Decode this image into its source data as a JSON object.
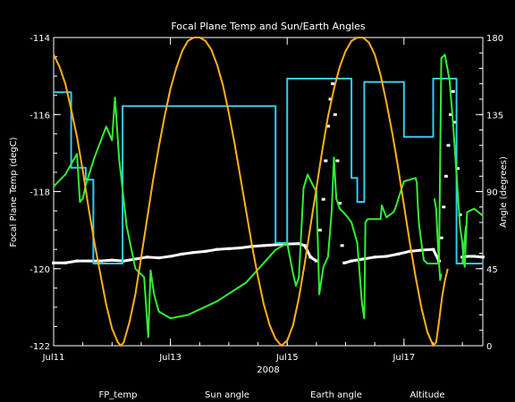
{
  "chart_data": {
    "type": "line",
    "title": "Focal Plane Temp and Sun/Earth Angles",
    "xlabel": "2008",
    "ylabel_left": "Focal Plane Temp (degC)",
    "ylabel_right": "Angle (degrees)",
    "x_ticks": [
      "Jul11",
      "Jul13",
      "Jul15",
      "Jul17"
    ],
    "x_tick_days": [
      0,
      2,
      4,
      6
    ],
    "xlim_days": [
      0,
      7.35
    ],
    "y_left": {
      "lim": [
        -122,
        -114
      ],
      "ticks": [
        "-122",
        "-120",
        "-118",
        "-116",
        "-114"
      ],
      "values": [
        -122,
        -120,
        -118,
        -116,
        -114
      ]
    },
    "y_right": {
      "lim": [
        0,
        180
      ],
      "ticks": [
        "0",
        "45",
        "90",
        "135",
        "180"
      ],
      "values": [
        0,
        45,
        90,
        135,
        180
      ]
    },
    "grid": false,
    "legend_position": "bottom",
    "colors": {
      "background": "#000000",
      "axes": "#ffffff",
      "fp_temp": "#ffffff",
      "sun": "#33ccee",
      "earth": "#33ee33",
      "altitude": "#ffb11a"
    },
    "series": [
      {
        "name": "FP_temp",
        "axis": "left",
        "style": "points",
        "points": [
          [
            0.0,
            -119.85
          ],
          [
            0.2,
            -119.85
          ],
          [
            0.4,
            -119.8
          ],
          [
            0.6,
            -119.8
          ],
          [
            0.8,
            -119.8
          ],
          [
            1.0,
            -119.78
          ],
          [
            1.2,
            -119.8
          ],
          [
            1.4,
            -119.75
          ],
          [
            1.6,
            -119.7
          ],
          [
            1.8,
            -119.72
          ],
          [
            2.0,
            -119.68
          ],
          [
            2.2,
            -119.62
          ],
          [
            2.4,
            -119.58
          ],
          [
            2.6,
            -119.55
          ],
          [
            2.8,
            -119.5
          ],
          [
            3.0,
            -119.48
          ],
          [
            3.2,
            -119.46
          ],
          [
            3.4,
            -119.42
          ],
          [
            3.6,
            -119.4
          ],
          [
            3.8,
            -119.38
          ],
          [
            4.0,
            -119.36
          ],
          [
            4.2,
            -119.35
          ],
          [
            4.3,
            -119.4
          ],
          [
            4.4,
            -119.7
          ],
          [
            4.5,
            -119.8
          ],
          [
            4.56,
            -119.0
          ],
          [
            4.62,
            -118.2
          ],
          [
            4.66,
            -117.2
          ],
          [
            4.7,
            -116.3
          ],
          [
            4.74,
            -115.6
          ],
          [
            4.78,
            -115.2
          ],
          [
            4.82,
            -116.0
          ],
          [
            4.86,
            -117.2
          ],
          [
            4.9,
            -118.3
          ],
          [
            4.94,
            -119.4
          ],
          [
            4.98,
            -119.85
          ],
          [
            5.1,
            -119.8
          ],
          [
            5.3,
            -119.75
          ],
          [
            5.5,
            -119.7
          ],
          [
            5.7,
            -119.68
          ],
          [
            5.9,
            -119.62
          ],
          [
            6.1,
            -119.55
          ],
          [
            6.3,
            -119.52
          ],
          [
            6.5,
            -119.5
          ],
          [
            6.6,
            -119.8
          ],
          [
            6.64,
            -119.2
          ],
          [
            6.68,
            -118.4
          ],
          [
            6.72,
            -117.6
          ],
          [
            6.76,
            -116.8
          ],
          [
            6.8,
            -116.0
          ],
          [
            6.84,
            -115.4
          ],
          [
            6.88,
            -116.2
          ],
          [
            6.92,
            -117.4
          ],
          [
            6.96,
            -118.6
          ],
          [
            7.0,
            -119.7
          ],
          [
            7.1,
            -119.68
          ],
          [
            7.2,
            -119.68
          ],
          [
            7.35,
            -119.7
          ]
        ]
      },
      {
        "name": "Sun angle",
        "axis": "right",
        "style": "step",
        "points": [
          [
            0.0,
            148
          ],
          [
            0.3,
            148
          ],
          [
            0.3,
            104
          ],
          [
            0.55,
            104
          ],
          [
            0.55,
            97
          ],
          [
            0.68,
            97
          ],
          [
            0.68,
            48
          ],
          [
            1.18,
            48
          ],
          [
            1.18,
            140
          ],
          [
            1.92,
            140
          ],
          [
            1.92,
            140
          ],
          [
            3.0,
            140
          ],
          [
            3.0,
            140
          ],
          [
            3.8,
            140
          ],
          [
            3.8,
            60
          ],
          [
            4.0,
            60
          ],
          [
            4.0,
            156
          ],
          [
            4.5,
            156
          ],
          [
            4.5,
            156
          ],
          [
            5.1,
            156
          ],
          [
            5.1,
            98
          ],
          [
            5.2,
            98
          ],
          [
            5.2,
            84
          ],
          [
            5.32,
            84
          ],
          [
            5.32,
            154
          ],
          [
            5.85,
            154
          ],
          [
            5.85,
            154
          ],
          [
            6.0,
            154
          ],
          [
            6.0,
            122
          ],
          [
            6.5,
            122
          ],
          [
            6.5,
            156
          ],
          [
            6.9,
            156
          ],
          [
            6.9,
            48
          ],
          [
            7.35,
            48
          ]
        ]
      },
      {
        "name": "Earth angle",
        "axis": "right",
        "style": "line",
        "points": [
          [
            0.0,
            93
          ],
          [
            0.2,
            100
          ],
          [
            0.4,
            112
          ],
          [
            0.45,
            84
          ],
          [
            0.5,
            86
          ],
          [
            0.55,
            94
          ],
          [
            0.7,
            110
          ],
          [
            0.9,
            128
          ],
          [
            1.0,
            120
          ],
          [
            1.05,
            145
          ],
          [
            1.12,
            110
          ],
          [
            1.25,
            70
          ],
          [
            1.4,
            45
          ],
          [
            1.55,
            40
          ],
          [
            1.62,
            5
          ],
          [
            1.66,
            44
          ],
          [
            1.72,
            30
          ],
          [
            1.8,
            20
          ],
          [
            2.0,
            16
          ],
          [
            2.3,
            18
          ],
          [
            2.8,
            26
          ],
          [
            3.3,
            37
          ],
          [
            3.8,
            56
          ],
          [
            4.0,
            60
          ],
          [
            4.1,
            42
          ],
          [
            4.15,
            35
          ],
          [
            4.2,
            40
          ],
          [
            4.28,
            92
          ],
          [
            4.35,
            100
          ],
          [
            4.42,
            95
          ],
          [
            4.5,
            90
          ],
          [
            4.55,
            30
          ],
          [
            4.62,
            46
          ],
          [
            4.7,
            52
          ],
          [
            4.76,
            78
          ],
          [
            4.8,
            110
          ],
          [
            4.84,
            86
          ],
          [
            4.86,
            84
          ],
          [
            4.9,
            80
          ],
          [
            4.96,
            78
          ],
          [
            5.04,
            75
          ],
          [
            5.1,
            72
          ],
          [
            5.2,
            60
          ],
          [
            5.28,
            25
          ],
          [
            5.32,
            16
          ],
          [
            5.34,
            72
          ],
          [
            5.38,
            74
          ],
          [
            5.55,
            74
          ],
          [
            5.6,
            74
          ],
          [
            5.62,
            82
          ],
          [
            5.7,
            75
          ],
          [
            5.82,
            78
          ],
          [
            5.85,
            80
          ],
          [
            6.0,
            96
          ],
          [
            6.2,
            98
          ],
          [
            6.22,
            95
          ],
          [
            6.24,
            80
          ],
          [
            6.26,
            70
          ],
          [
            6.3,
            60
          ],
          [
            6.34,
            50
          ],
          [
            6.4,
            48
          ],
          [
            6.6,
            48
          ],
          [
            6.64,
            168
          ],
          [
            6.7,
            170
          ],
          [
            6.78,
            155
          ],
          [
            6.84,
            130
          ],
          [
            6.9,
            100
          ],
          [
            6.96,
            70
          ],
          [
            7.0,
            60
          ],
          [
            7.02,
            50
          ],
          [
            7.04,
            46
          ],
          [
            7.08,
            78
          ],
          [
            7.2,
            80
          ],
          [
            7.35,
            76
          ]
        ],
        "extra_segments": [
          [
            [
              6.52,
              86
            ],
            [
              6.55,
              80
            ],
            [
              6.58,
              60
            ],
            [
              6.62,
              38
            ],
            [
              6.64,
              42
            ]
          ],
          [
            [
              7.0,
              48
            ],
            [
              7.06,
              70
            ]
          ]
        ]
      },
      {
        "name": "Altitude",
        "axis": "right",
        "style": "line",
        "points": [
          [
            0.0,
            170
          ],
          [
            0.1,
            163
          ],
          [
            0.2,
            153
          ],
          [
            0.3,
            138
          ],
          [
            0.4,
            122
          ],
          [
            0.5,
            102
          ],
          [
            0.6,
            80
          ],
          [
            0.7,
            60
          ],
          [
            0.8,
            42
          ],
          [
            0.9,
            24
          ],
          [
            1.0,
            10
          ],
          [
            1.1,
            2
          ],
          [
            1.15,
            0
          ],
          [
            1.2,
            2
          ],
          [
            1.3,
            14
          ],
          [
            1.4,
            30
          ],
          [
            1.5,
            52
          ],
          [
            1.6,
            74
          ],
          [
            1.7,
            96
          ],
          [
            1.8,
            116
          ],
          [
            1.9,
            134
          ],
          [
            2.0,
            150
          ],
          [
            2.1,
            162
          ],
          [
            2.2,
            172
          ],
          [
            2.3,
            178
          ],
          [
            2.4,
            180
          ],
          [
            2.5,
            180
          ],
          [
            2.6,
            178
          ],
          [
            2.7,
            173
          ],
          [
            2.8,
            164
          ],
          [
            2.9,
            152
          ],
          [
            3.0,
            136
          ],
          [
            3.1,
            118
          ],
          [
            3.2,
            98
          ],
          [
            3.3,
            78
          ],
          [
            3.4,
            58
          ],
          [
            3.5,
            40
          ],
          [
            3.6,
            24
          ],
          [
            3.7,
            12
          ],
          [
            3.8,
            4
          ],
          [
            3.9,
            0
          ],
          [
            4.0,
            3
          ],
          [
            4.1,
            12
          ],
          [
            4.2,
            28
          ],
          [
            4.3,
            48
          ],
          [
            4.4,
            70
          ],
          [
            4.5,
            92
          ],
          [
            4.6,
            114
          ],
          [
            4.7,
            134
          ],
          [
            4.8,
            150
          ],
          [
            4.9,
            163
          ],
          [
            5.0,
            172
          ],
          [
            5.1,
            178
          ],
          [
            5.2,
            180
          ],
          [
            5.3,
            180
          ],
          [
            5.4,
            177
          ],
          [
            5.5,
            170
          ],
          [
            5.6,
            158
          ],
          [
            5.7,
            142
          ],
          [
            5.8,
            124
          ],
          [
            5.9,
            104
          ],
          [
            6.0,
            82
          ],
          [
            6.1,
            60
          ],
          [
            6.2,
            40
          ],
          [
            6.3,
            22
          ],
          [
            6.4,
            8
          ],
          [
            6.5,
            0
          ],
          [
            6.55,
            2
          ],
          [
            6.6,
            14
          ],
          [
            6.65,
            28
          ],
          [
            6.7,
            38
          ],
          [
            6.75,
            45
          ]
        ]
      }
    ]
  }
}
